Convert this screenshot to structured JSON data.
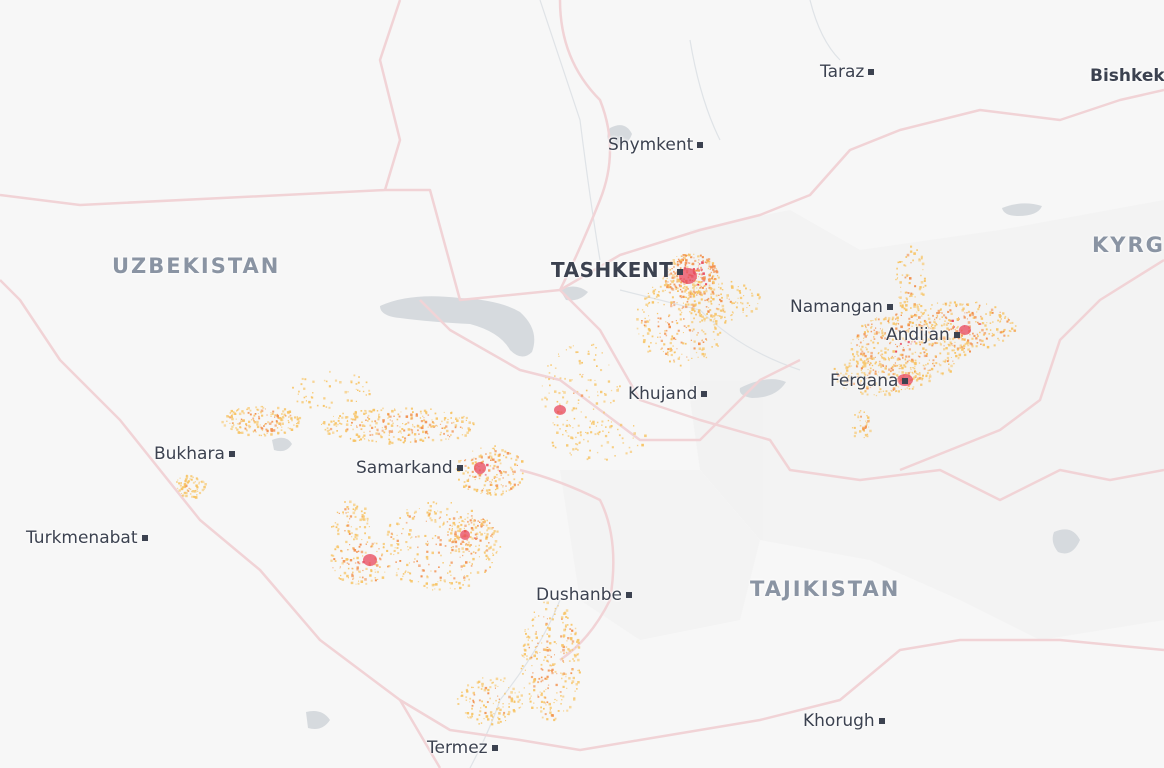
{
  "map": {
    "colors": {
      "background": "#f7f7f7",
      "border": "#f3d5d8",
      "water": "#d6dade",
      "density_low": "#f7c465",
      "density_mid": "#f2904e",
      "density_high": "#e8475c"
    },
    "countries": [
      {
        "key": "uzbekistan",
        "label": "UZBEKISTAN"
      },
      {
        "key": "tajikistan",
        "label": "TAJIKISTAN"
      },
      {
        "key": "kyrgyzstan",
        "label": "KYRG"
      }
    ],
    "cities": [
      {
        "key": "taraz",
        "label": "Taraz",
        "capital": false
      },
      {
        "key": "bishkek",
        "label": "Bishkek",
        "capital": true
      },
      {
        "key": "shymkent",
        "label": "Shymkent",
        "capital": false
      },
      {
        "key": "tashkent",
        "label": "TASHKENT",
        "capital": true
      },
      {
        "key": "namangan",
        "label": "Namangan",
        "capital": false
      },
      {
        "key": "andijan",
        "label": "Andijan",
        "capital": false
      },
      {
        "key": "fergana",
        "label": "Fergana",
        "capital": false
      },
      {
        "key": "khujand",
        "label": "Khujand",
        "capital": false
      },
      {
        "key": "bukhara",
        "label": "Bukhara",
        "capital": false
      },
      {
        "key": "samarkand",
        "label": "Samarkand",
        "capital": false
      },
      {
        "key": "turkmenabat",
        "label": "Turkmenabat",
        "capital": false
      },
      {
        "key": "dushanbe",
        "label": "Dushanbe",
        "capital": true
      },
      {
        "key": "khorugh",
        "label": "Khorugh",
        "capital": false
      },
      {
        "key": "termez",
        "label": "Termez",
        "capital": false
      }
    ]
  }
}
